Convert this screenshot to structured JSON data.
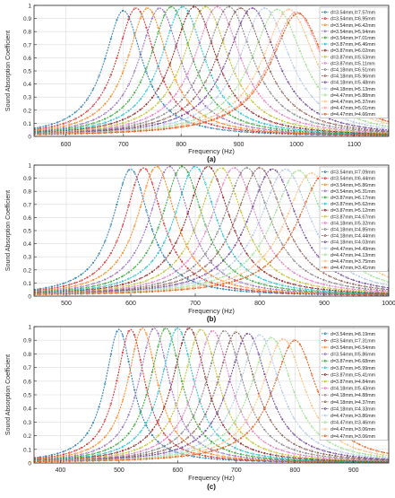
{
  "chart_data": [
    {
      "type": "line",
      "panel_label": "(a)",
      "xlabel": "Frequency (Hz)",
      "ylabel": "Sound Absorption Coefficient",
      "xlim": [
        545,
        1160
      ],
      "ylim": [
        0,
        1.0
      ],
      "xticks": [
        600,
        700,
        800,
        900,
        1000,
        1100
      ],
      "yticks": [
        0,
        0.1,
        0.2,
        0.3,
        0.4,
        0.5,
        0.6,
        0.7,
        0.8,
        0.9,
        1
      ],
      "grid": true,
      "legend_position": "top-right",
      "series": [
        {
          "name": "d=3.54mm,l=7.57mm",
          "peak_freq": 700,
          "peak_value": 0.96,
          "color": "#1f77b4"
        },
        {
          "name": "d=3.54mm,l=6.95mm",
          "peak_freq": 722,
          "peak_value": 0.98,
          "color": "#d62728"
        },
        {
          "name": "d=3.54mm,l=6.42mm",
          "peak_freq": 742,
          "peak_value": 0.98,
          "color": "#ff7f0e"
        },
        {
          "name": "d=3.54mm,l=5.94mm",
          "peak_freq": 763,
          "peak_value": 0.98,
          "color": "#9467bd"
        },
        {
          "name": "d=3.54mm,l=7.01mm",
          "peak_freq": 783,
          "peak_value": 0.99,
          "color": "#2ca02c"
        },
        {
          "name": "d=3.87mm,l=6.46mm",
          "peak_freq": 803,
          "peak_value": 0.99,
          "color": "#17becf"
        },
        {
          "name": "d=3.87mm,l=6.02mm",
          "peak_freq": 823,
          "peak_value": 0.99,
          "color": "#8c1a1a"
        },
        {
          "name": "d=3.87mm,l=5.53mm",
          "peak_freq": 843,
          "peak_value": 0.99,
          "color": "#bcbd22"
        },
        {
          "name": "d=3.87mm,l=5.11mm",
          "peak_freq": 863,
          "peak_value": 0.99,
          "color": "#e377c2"
        },
        {
          "name": "d=4.18mm,l=6.51mm",
          "peak_freq": 883,
          "peak_value": 0.99,
          "color": "#7f7f7f"
        },
        {
          "name": "d=4.18mm,l=5.96mm",
          "peak_freq": 903,
          "peak_value": 0.98,
          "color": "#8c564b"
        },
        {
          "name": "d=4.18mm,l=5.48mm",
          "peak_freq": 923,
          "peak_value": 0.98,
          "color": "#6a3d9a"
        },
        {
          "name": "d=4.18mm,l=5.13mm",
          "peak_freq": 945,
          "peak_value": 0.98,
          "color": "#aec7e8"
        },
        {
          "name": "d=4.47mm,l=5.88mm",
          "peak_freq": 967,
          "peak_value": 0.97,
          "color": "#98df8a"
        },
        {
          "name": "d=4.47mm,l=5.37mm",
          "peak_freq": 987,
          "peak_value": 0.97,
          "color": "#ffbb78"
        },
        {
          "name": "d=4.47mm,l=5.01mm",
          "peak_freq": 1000,
          "peak_value": 0.95,
          "color": "#ff9896"
        },
        {
          "name": "d=4.47mm,l=4.66mm",
          "peak_freq": 1003,
          "peak_value": 0.94,
          "color": "#e6550d"
        }
      ]
    },
    {
      "type": "line",
      "panel_label": "(b)",
      "xlabel": "Frequency (Hz)",
      "ylabel": "Sound Absorption Coefficient",
      "xlim": [
        450,
        1000
      ],
      "ylim": [
        0,
        1.0
      ],
      "xticks": [
        500,
        600,
        700,
        800,
        900,
        1000
      ],
      "yticks": [
        0,
        0.1,
        0.2,
        0.3,
        0.4,
        0.5,
        0.6,
        0.7,
        0.8,
        0.9,
        1
      ],
      "grid": true,
      "legend_position": "top-right",
      "series": [
        {
          "name": "d=3.54mm,l=7.09mm",
          "peak_freq": 600,
          "peak_value": 0.97,
          "color": "#1f77b4"
        },
        {
          "name": "d=3.54mm,l=6.44mm",
          "peak_freq": 620,
          "peak_value": 0.98,
          "color": "#d62728"
        },
        {
          "name": "d=3.54mm,l=5.86mm",
          "peak_freq": 640,
          "peak_value": 0.99,
          "color": "#ff7f0e"
        },
        {
          "name": "d=3.54mm,l=5.31mm",
          "peak_freq": 660,
          "peak_value": 0.99,
          "color": "#9467bd"
        },
        {
          "name": "d=3.87mm,l=6.17mm",
          "peak_freq": 680,
          "peak_value": 0.99,
          "color": "#2ca02c"
        },
        {
          "name": "d=3.87mm,l=5.62mm",
          "peak_freq": 700,
          "peak_value": 0.99,
          "color": "#17becf"
        },
        {
          "name": "d=3.87mm,l=5.12mm",
          "peak_freq": 720,
          "peak_value": 0.99,
          "color": "#8c1a1a"
        },
        {
          "name": "d=3.87mm,l=4.67mm",
          "peak_freq": 740,
          "peak_value": 0.98,
          "color": "#bcbd22"
        },
        {
          "name": "d=4.18mm,l=5.32mm",
          "peak_freq": 760,
          "peak_value": 0.98,
          "color": "#e377c2"
        },
        {
          "name": "d=4.18mm,l=4.85mm",
          "peak_freq": 780,
          "peak_value": 0.98,
          "color": "#7f7f7f"
        },
        {
          "name": "d=4.18mm,l=4.44mm",
          "peak_freq": 800,
          "peak_value": 0.98,
          "color": "#8c564b"
        },
        {
          "name": "d=4.18mm,l=4.03mm",
          "peak_freq": 820,
          "peak_value": 0.97,
          "color": "#6a3d9a"
        },
        {
          "name": "d=4.47mm,l=4.49mm",
          "peak_freq": 840,
          "peak_value": 0.97,
          "color": "#aec7e8"
        },
        {
          "name": "d=4.47mm,l=4.13mm",
          "peak_freq": 860,
          "peak_value": 0.96,
          "color": "#98df8a"
        },
        {
          "name": "d=4.47mm,l=3.75mm",
          "peak_freq": 880,
          "peak_value": 0.94,
          "color": "#ffbb78"
        },
        {
          "name": "d=4.47mm,l=3.41mm",
          "peak_freq": 900,
          "peak_value": 0.93,
          "color": "#e6550d"
        }
      ]
    },
    {
      "type": "line",
      "panel_label": "(c)",
      "xlabel": "Frequency (Hz)",
      "ylabel": "Sound Absorption Coefficient",
      "xlim": [
        355,
        960
      ],
      "ylim": [
        0,
        1.0
      ],
      "xticks": [
        400,
        500,
        600,
        700,
        800,
        900
      ],
      "yticks": [
        0,
        0.1,
        0.2,
        0.3,
        0.4,
        0.5,
        0.6,
        0.7,
        0.8,
        0.9,
        1
      ],
      "grid": true,
      "legend_position": "top-right",
      "series": [
        {
          "name": "d=3.54mm,l=8.19mm",
          "peak_freq": 500,
          "peak_value": 0.98,
          "color": "#1f77b4"
        },
        {
          "name": "d=3.54mm,l=7.31mm",
          "peak_freq": 520,
          "peak_value": 0.98,
          "color": "#d62728"
        },
        {
          "name": "d=3.54mm,l=6.54mm",
          "peak_freq": 540,
          "peak_value": 0.99,
          "color": "#ff7f0e"
        },
        {
          "name": "d=3.54mm,l=5.86mm",
          "peak_freq": 560,
          "peak_value": 0.99,
          "color": "#9467bd"
        },
        {
          "name": "d=3.87mm,l=6.68mm",
          "peak_freq": 580,
          "peak_value": 0.99,
          "color": "#2ca02c"
        },
        {
          "name": "d=3.87mm,l=5.99mm",
          "peak_freq": 600,
          "peak_value": 0.99,
          "color": "#17becf"
        },
        {
          "name": "d=3.87mm,l=5.41mm",
          "peak_freq": 620,
          "peak_value": 0.99,
          "color": "#8c1a1a"
        },
        {
          "name": "d=3.87mm,l=4.84mm",
          "peak_freq": 640,
          "peak_value": 0.98,
          "color": "#bcbd22"
        },
        {
          "name": "d=4.18mm,l=5.43mm",
          "peak_freq": 660,
          "peak_value": 0.97,
          "color": "#e377c2"
        },
        {
          "name": "d=4.18mm,l=4.88mm",
          "peak_freq": 680,
          "peak_value": 0.97,
          "color": "#7f7f7f"
        },
        {
          "name": "d=4.18mm,l=4.37mm",
          "peak_freq": 700,
          "peak_value": 0.96,
          "color": "#8c564b"
        },
        {
          "name": "d=4.18mm,l=4.33mm",
          "peak_freq": 720,
          "peak_value": 0.95,
          "color": "#6a3d9a"
        },
        {
          "name": "d=4.47mm,l=3.86mm",
          "peak_freq": 740,
          "peak_value": 0.94,
          "color": "#aec7e8"
        },
        {
          "name": "d=4.47mm,l=3.46mm",
          "peak_freq": 760,
          "peak_value": 0.92,
          "color": "#98df8a"
        },
        {
          "name": "d=4.47mm,l=3.06mm",
          "peak_freq": 780,
          "peak_value": 0.91,
          "color": "#ffbb78"
        },
        {
          "name": "d=4.47mm,l=3.06mm",
          "peak_freq": 800,
          "peak_value": 0.9,
          "color": "#e6550d"
        }
      ]
    }
  ]
}
